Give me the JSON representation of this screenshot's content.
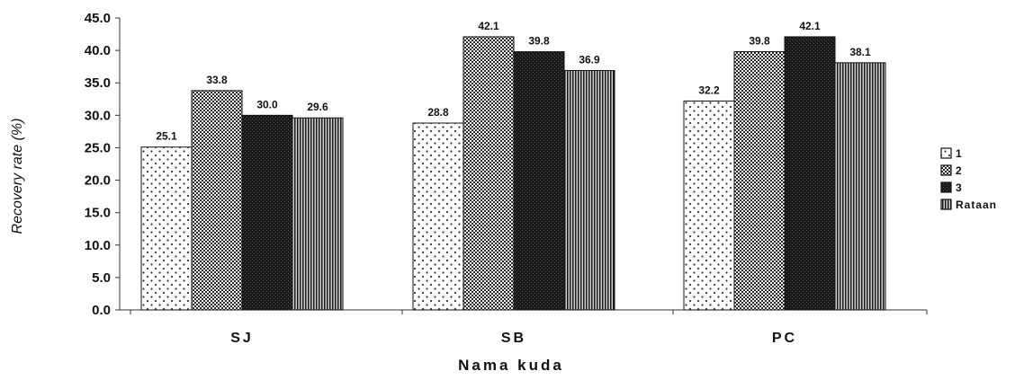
{
  "chart_data": {
    "type": "bar",
    "title": "",
    "xlabel": "Nama kuda",
    "ylabel": "Recovery rate (%)",
    "categories": [
      "SJ",
      "SB",
      "PC"
    ],
    "ylim": [
      0,
      45
    ],
    "yticks": [
      "0.0",
      "5.0",
      "10.0",
      "15.0",
      "20.0",
      "25.0",
      "30.0",
      "35.0",
      "40.0",
      "45.0"
    ],
    "grid": false,
    "legend_position": "right",
    "series": [
      {
        "name": "1",
        "values": [
          25.1,
          28.8,
          32.2
        ],
        "labels": [
          "25.1",
          "28.8",
          "32.2"
        ],
        "pattern": "dots"
      },
      {
        "name": "2",
        "values": [
          33.8,
          42.1,
          39.8
        ],
        "labels": [
          "33.8",
          "42.1",
          "39.8"
        ],
        "pattern": "checker"
      },
      {
        "name": "3",
        "values": [
          30.0,
          39.8,
          42.1
        ],
        "labels": [
          "30.0",
          "39.8",
          "42.1"
        ],
        "pattern": "dark"
      },
      {
        "name": "Rataan",
        "values": [
          29.6,
          36.9,
          38.1
        ],
        "labels": [
          "29.6",
          "36.9",
          "38.1"
        ],
        "pattern": "vlines"
      }
    ]
  }
}
